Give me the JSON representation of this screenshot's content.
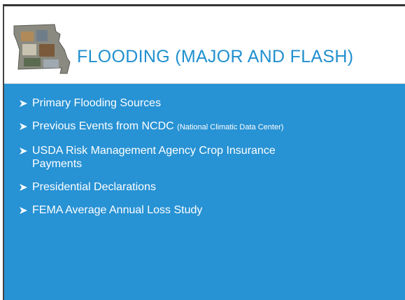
{
  "header": {
    "title": "FLOODING (MAJOR AND FLASH)"
  },
  "bullets": [
    {
      "text": "Primary Flooding Sources"
    },
    {
      "text": "Previous Events from NCDC",
      "note": "(National Climatic Data Center)"
    },
    {
      "text": "USDA Risk Management Agency Crop Insurance Payments"
    },
    {
      "text": "Presidential Declarations"
    },
    {
      "text": "FEMA Average Annual Loss Study"
    }
  ]
}
